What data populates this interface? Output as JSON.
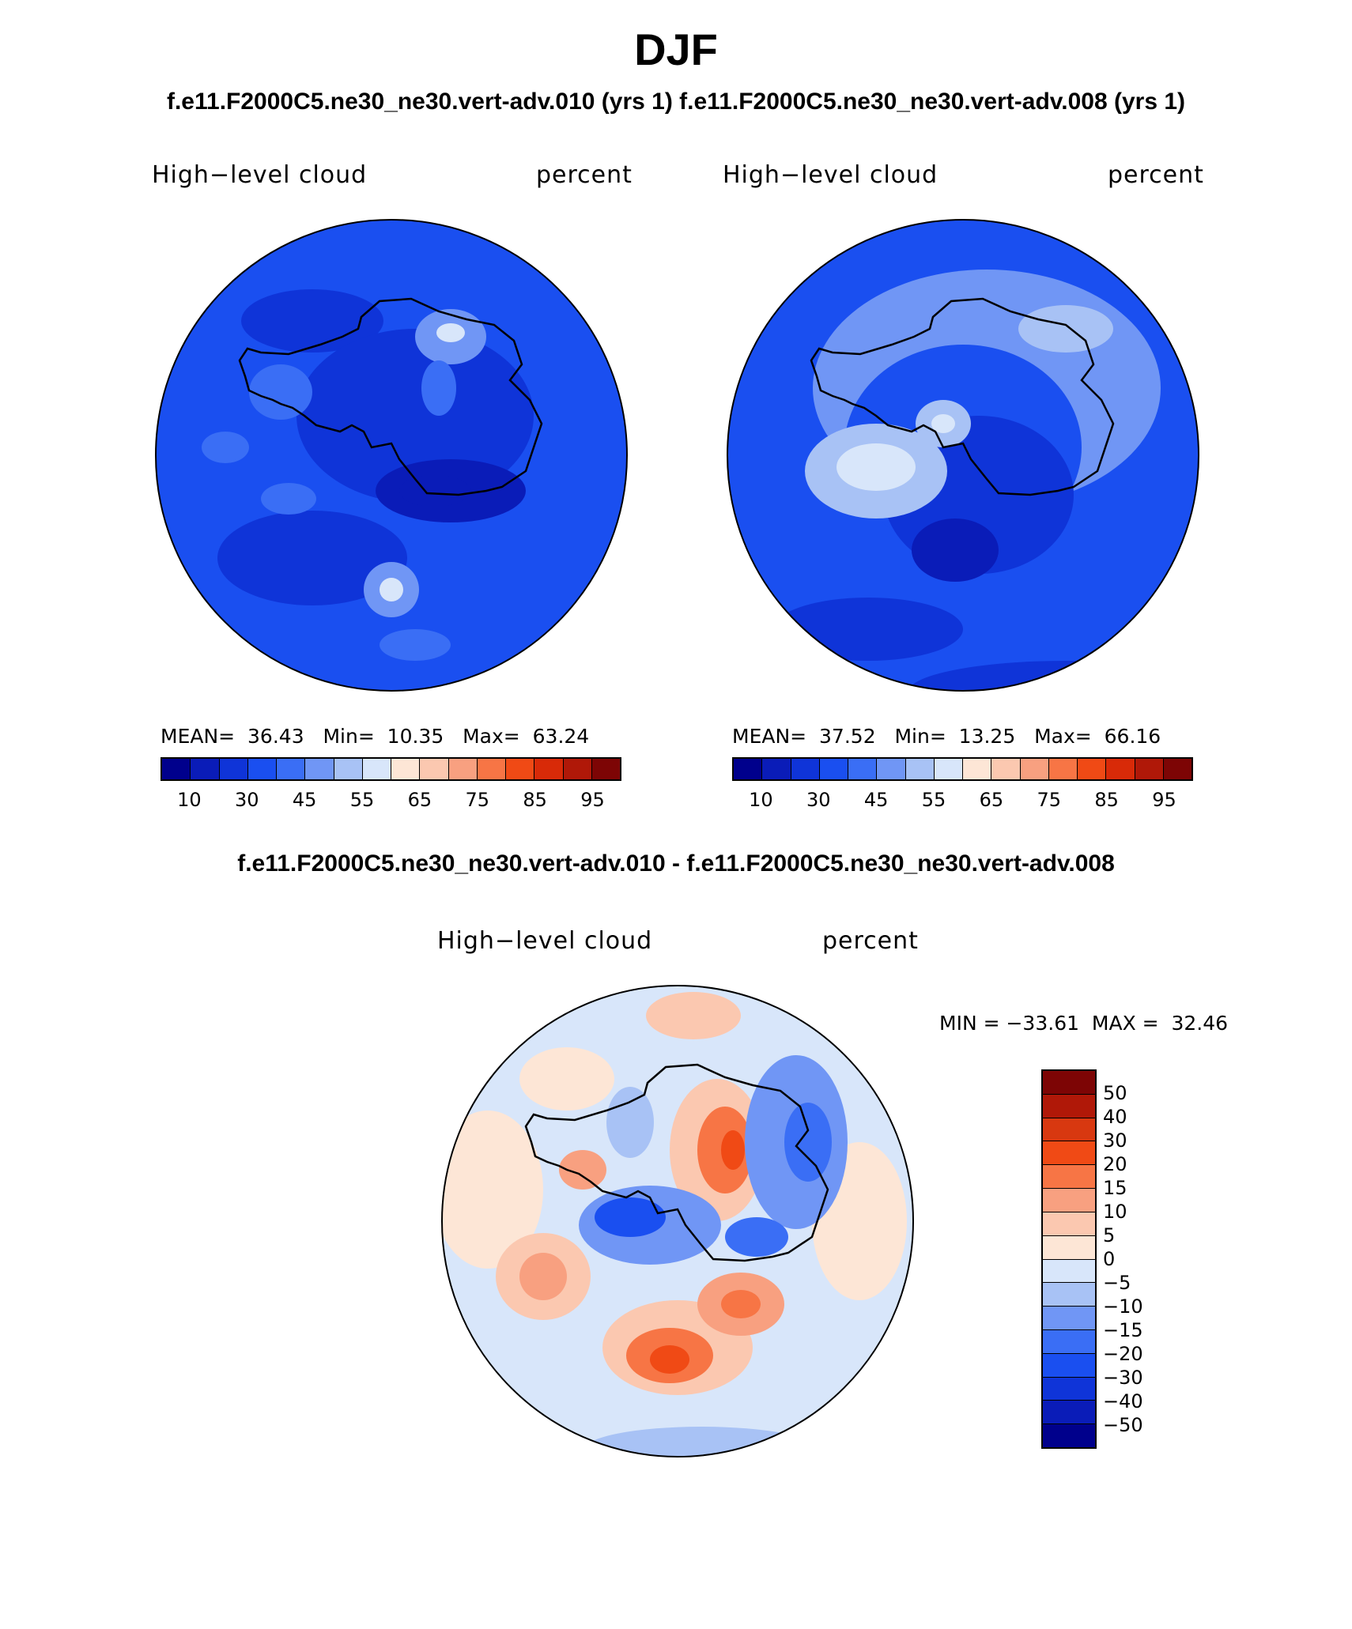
{
  "header": {
    "title": "DJF",
    "subtitle": "f.e11.F2000C5.ne30_ne30.vert-adv.010 (yrs 1)  f.e11.F2000C5.ne30_ne30.vert-adv.008 (yrs 1)"
  },
  "panels": [
    {
      "field_label": "High−level cloud",
      "units_label": "percent",
      "stats": {
        "mean_label": "MEAN=",
        "mean": "36.43",
        "min_label": "Min=",
        "min": "10.35",
        "max_label": "Max=",
        "max": "63.24"
      }
    },
    {
      "field_label": "High−level cloud",
      "units_label": "percent",
      "stats": {
        "mean_label": "MEAN=",
        "mean": "37.52",
        "min_label": "Min=",
        "min": "13.25",
        "max_label": "Max=",
        "max": "66.16"
      }
    }
  ],
  "abs_colorbar": {
    "colors": [
      "#00008c",
      "#0a1cb8",
      "#0f34d8",
      "#1a4ff0",
      "#3a6ef5",
      "#7096f5",
      "#a8c2f5",
      "#d8e6fa",
      "#fde6d6",
      "#fbc8b0",
      "#f8a080",
      "#f77545",
      "#f04a15",
      "#d82a08",
      "#b01808",
      "#7d0505"
    ],
    "tick_labels": [
      "10",
      "30",
      "45",
      "55",
      "65",
      "75",
      "85",
      "95"
    ]
  },
  "difference": {
    "title": "f.e11.F2000C5.ne30_ne30.vert-adv.010 - f.e11.F2000C5.ne30_ne30.vert-adv.008",
    "field_label": "High−level cloud",
    "units_label": "percent",
    "minmax": "MIN = −33.61  MAX =  32.46",
    "colorbar": {
      "colors": [
        "#7d0505",
        "#b01808",
        "#d83810",
        "#f04a15",
        "#f77545",
        "#f8a080",
        "#fbc8b0",
        "#fde6d6",
        "#d8e6fa",
        "#a8c2f5",
        "#7096f5",
        "#3a6ef5",
        "#1a4ff0",
        "#0f34d8",
        "#0a1cb8",
        "#00008c"
      ],
      "tick_labels": [
        "50",
        "40",
        "30",
        "20",
        "15",
        "10",
        "5",
        "0",
        "−5",
        "−10",
        "−15",
        "−20",
        "−30",
        "−40",
        "−50"
      ]
    }
  },
  "map_colors": {
    "base1": "#1a4ff0",
    "mid1": "#0f34d8",
    "dark1": "#0a1cb8",
    "light1": "#3a6ef5",
    "lighter1": "#7096f5",
    "pale1": "#a8c2f5",
    "white1": "#d8e6fa",
    "peach1": "#fde6d6",
    "diff_base": "#d8e6fa",
    "diff_pos1": "#fde6d6",
    "diff_pos2": "#fbc8b0",
    "diff_pos3": "#f8a080",
    "diff_pos4": "#f77545",
    "diff_pos5": "#f04a15",
    "diff_neg1": "#a8c2f5",
    "diff_neg2": "#7096f5",
    "diff_neg3": "#3a6ef5",
    "diff_neg4": "#1a4ff0"
  }
}
